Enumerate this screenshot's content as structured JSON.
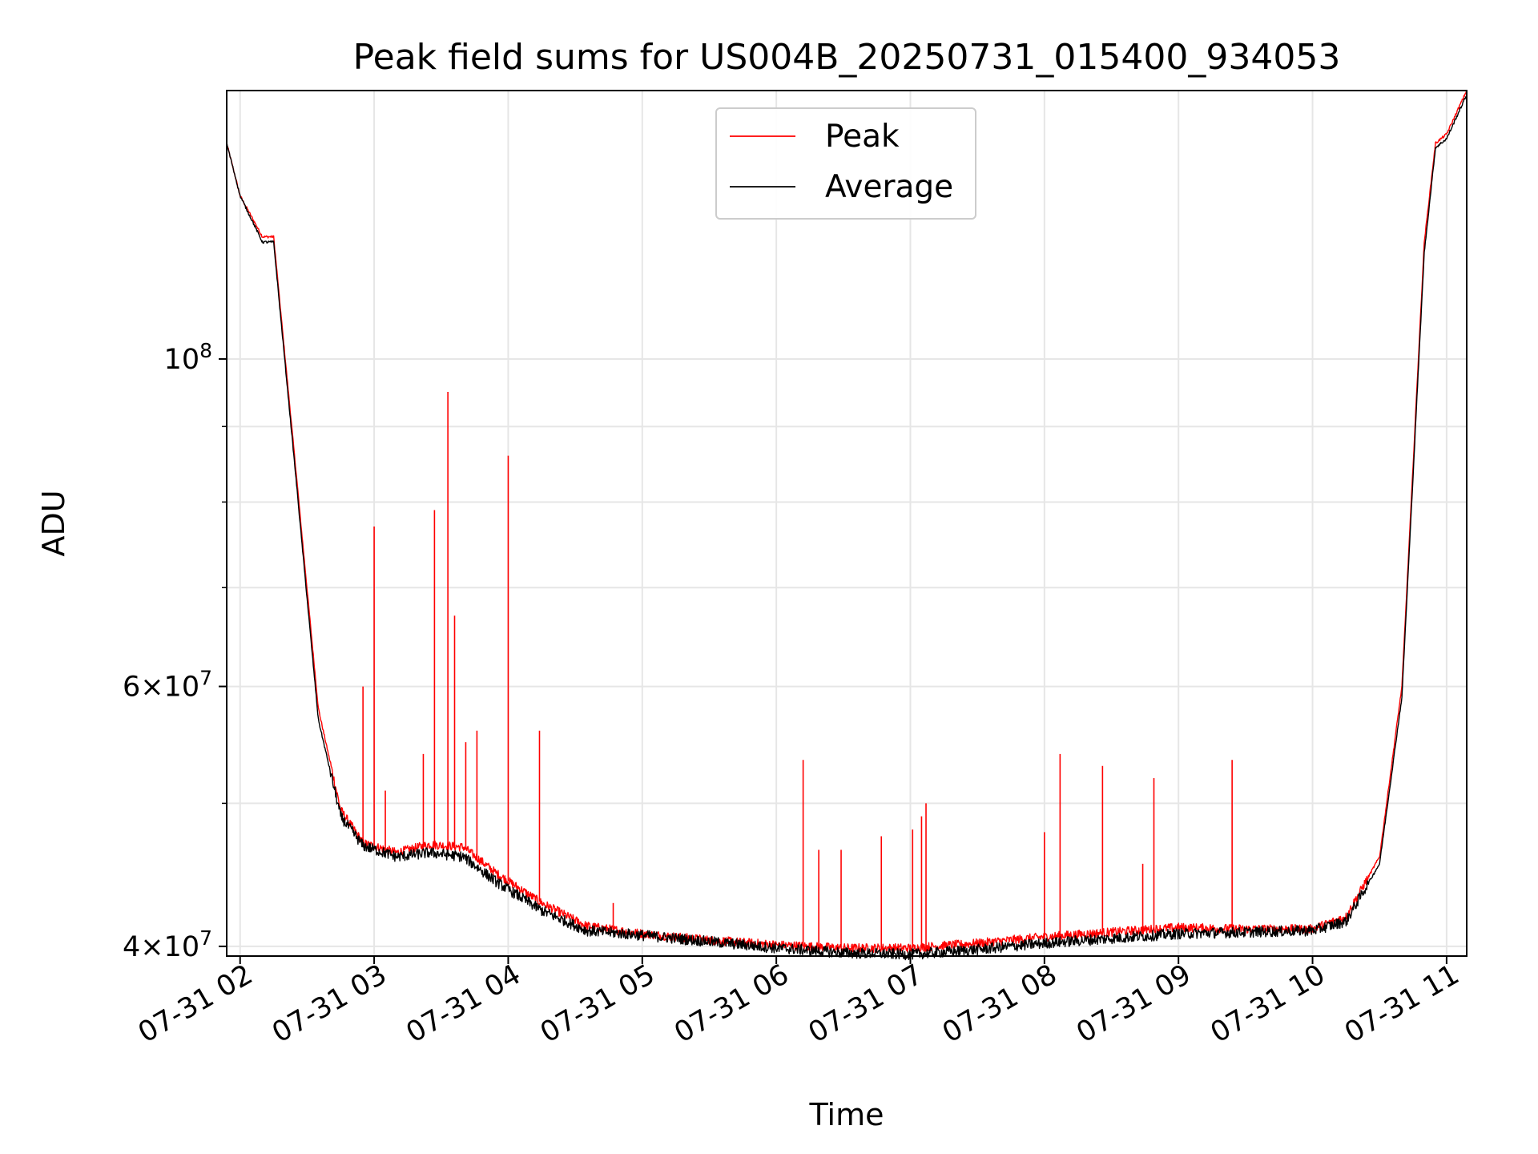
{
  "chart_data": {
    "type": "line",
    "title": "Peak field sums for US004B_20250731_015400_934053",
    "xlabel": "Time",
    "ylabel": "ADU",
    "yscale": "log",
    "grid": true,
    "legend_position": "top-center",
    "x_ticks": [
      "07-31 02",
      "07-31 03",
      "07-31 04",
      "07-31 05",
      "07-31 06",
      "07-31 07",
      "07-31 08",
      "07-31 09",
      "07-31 10",
      "07-31 11"
    ],
    "y_ticks": [
      {
        "value": 40000000,
        "base": "4",
        "exp": "7"
      },
      {
        "value": 60000000,
        "base": "6",
        "exp": "7"
      },
      {
        "value": 100000000,
        "base": "10",
        "exp": "8"
      }
    ],
    "xlim": [
      "07-31 01:54",
      "07-31 11:09"
    ],
    "ylim": [
      39400000,
      152000000
    ],
    "series": [
      {
        "name": "Peak",
        "color": "#ff0000",
        "points": [
          [
            "07-31 01:54",
            140000000
          ],
          [
            "07-31 02:00",
            129000000
          ],
          [
            "07-31 02:10",
            121000000
          ],
          [
            "07-31 02:15",
            121000000
          ],
          [
            "07-31 02:25",
            84000000
          ],
          [
            "07-31 02:35",
            58000000
          ],
          [
            "07-31 02:45",
            49500000
          ],
          [
            "07-31 02:55",
            47000000
          ],
          [
            "07-31 03:10",
            46300000
          ],
          [
            "07-31 03:25",
            46900000
          ],
          [
            "07-31 03:40",
            46700000
          ],
          [
            "07-31 03:55",
            44800000
          ],
          [
            "07-31 04:15",
            42800000
          ],
          [
            "07-31 04:35",
            41300000
          ],
          [
            "07-31 05:00",
            40800000
          ],
          [
            "07-31 05:30",
            40400000
          ],
          [
            "07-31 06:00",
            40100000
          ],
          [
            "07-31 06:30",
            39900000
          ],
          [
            "07-31 07:00",
            39900000
          ],
          [
            "07-31 07:30",
            40200000
          ],
          [
            "07-31 08:00",
            40600000
          ],
          [
            "07-31 08:30",
            40900000
          ],
          [
            "07-31 09:00",
            41200000
          ],
          [
            "07-31 09:30",
            41100000
          ],
          [
            "07-31 10:00",
            41100000
          ],
          [
            "07-31 10:15",
            41900000
          ],
          [
            "07-31 10:30",
            46000000
          ],
          [
            "07-31 10:40",
            60000000
          ],
          [
            "07-31 10:50",
            120000000
          ],
          [
            "07-31 10:55",
            140000000
          ],
          [
            "07-31 11:00",
            142000000
          ],
          [
            "07-31 11:09",
            152000000
          ]
        ],
        "spikes": [
          [
            "07-31 02:55",
            60000000
          ],
          [
            "07-31 03:00",
            77000000
          ],
          [
            "07-31 03:05",
            51000000
          ],
          [
            "07-31 03:22",
            54000000
          ],
          [
            "07-31 03:27",
            79000000
          ],
          [
            "07-31 03:33",
            95000000
          ],
          [
            "07-31 03:36",
            67000000
          ],
          [
            "07-31 03:41",
            55000000
          ],
          [
            "07-31 03:46",
            56000000
          ],
          [
            "07-31 04:00",
            86000000
          ],
          [
            "07-31 04:14",
            56000000
          ],
          [
            "07-31 04:47",
            42800000
          ],
          [
            "07-31 06:12",
            53500000
          ],
          [
            "07-31 06:19",
            46500000
          ],
          [
            "07-31 06:29",
            46500000
          ],
          [
            "07-31 06:47",
            47500000
          ],
          [
            "07-31 07:01",
            48000000
          ],
          [
            "07-31 07:05",
            49000000
          ],
          [
            "07-31 07:07",
            50000000
          ],
          [
            "07-31 08:00",
            47800000
          ],
          [
            "07-31 08:07",
            54000000
          ],
          [
            "07-31 08:26",
            53000000
          ],
          [
            "07-31 08:44",
            45500000
          ],
          [
            "07-31 08:49",
            52000000
          ],
          [
            "07-31 09:24",
            53500000
          ]
        ]
      },
      {
        "name": "Average",
        "color": "#000000",
        "points": [
          [
            "07-31 01:54",
            140000000
          ],
          [
            "07-31 02:00",
            129000000
          ],
          [
            "07-31 02:10",
            120000000
          ],
          [
            "07-31 02:15",
            120000000
          ],
          [
            "07-31 02:25",
            83000000
          ],
          [
            "07-31 02:35",
            57000000
          ],
          [
            "07-31 02:45",
            49000000
          ],
          [
            "07-31 02:55",
            46800000
          ],
          [
            "07-31 03:10",
            46000000
          ],
          [
            "07-31 03:25",
            46300000
          ],
          [
            "07-31 03:40",
            46000000
          ],
          [
            "07-31 03:55",
            44200000
          ],
          [
            "07-31 04:15",
            42300000
          ],
          [
            "07-31 04:35",
            41000000
          ],
          [
            "07-31 05:00",
            40700000
          ],
          [
            "07-31 05:30",
            40300000
          ],
          [
            "07-31 06:00",
            39900000
          ],
          [
            "07-31 06:30",
            39600000
          ],
          [
            "07-31 07:00",
            39500000
          ],
          [
            "07-31 07:30",
            39800000
          ],
          [
            "07-31 08:00",
            40200000
          ],
          [
            "07-31 08:30",
            40500000
          ],
          [
            "07-31 09:00",
            40800000
          ],
          [
            "07-31 09:30",
            40900000
          ],
          [
            "07-31 10:00",
            41000000
          ],
          [
            "07-31 10:15",
            41600000
          ],
          [
            "07-31 10:30",
            45500000
          ],
          [
            "07-31 10:40",
            59000000
          ],
          [
            "07-31 10:50",
            118000000
          ],
          [
            "07-31 10:55",
            139000000
          ],
          [
            "07-31 11:00",
            141000000
          ],
          [
            "07-31 11:09",
            151000000
          ]
        ]
      }
    ]
  }
}
